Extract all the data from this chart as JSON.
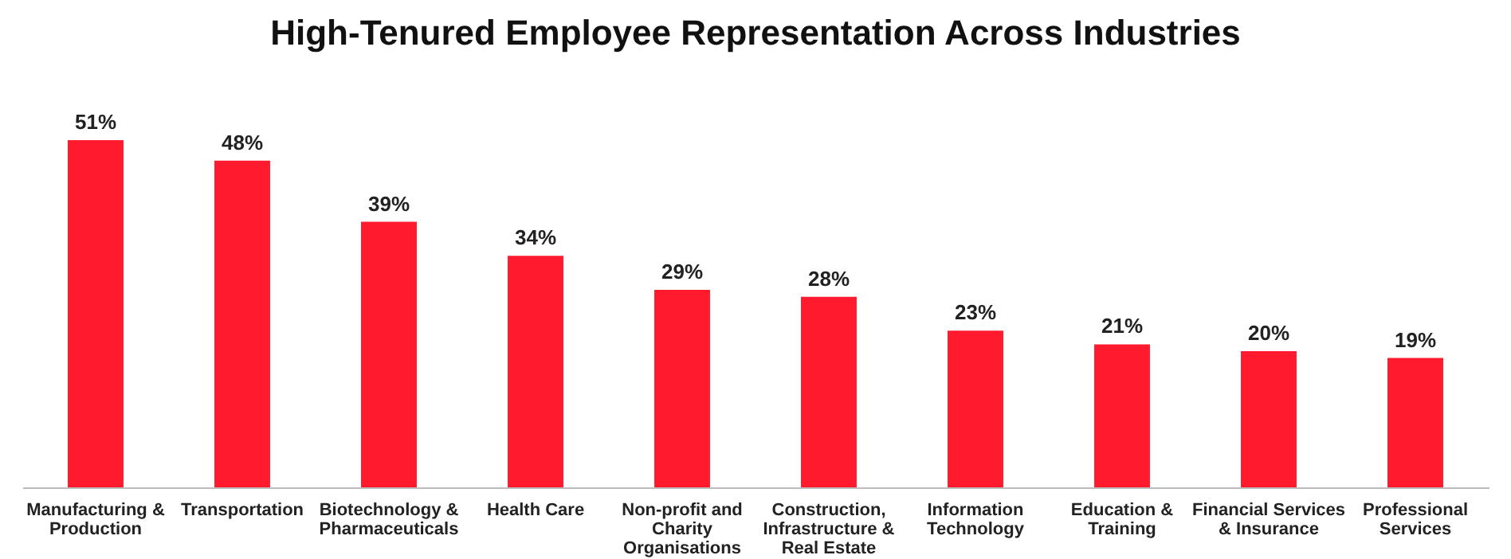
{
  "chart_data": {
    "type": "bar",
    "title": "High-Tenured Employee Representation Across Industries",
    "categories": [
      "Manufacturing & Production",
      "Transportation",
      "Biotechnology & Pharmaceuticals",
      "Health Care",
      "Non-profit and Charity Organisations",
      "Construction, Infrastructure & Real Estate",
      "Information Technology",
      "Education & Training",
      "Financial Services & Insurance",
      "Professional Services"
    ],
    "values": [
      51,
      48,
      39,
      34,
      29,
      28,
      23,
      21,
      20,
      19
    ],
    "value_labels": [
      "51%",
      "48%",
      "39%",
      "34%",
      "29%",
      "28%",
      "23%",
      "21%",
      "20%",
      "19%"
    ],
    "color": "#ff1a2e"
  }
}
